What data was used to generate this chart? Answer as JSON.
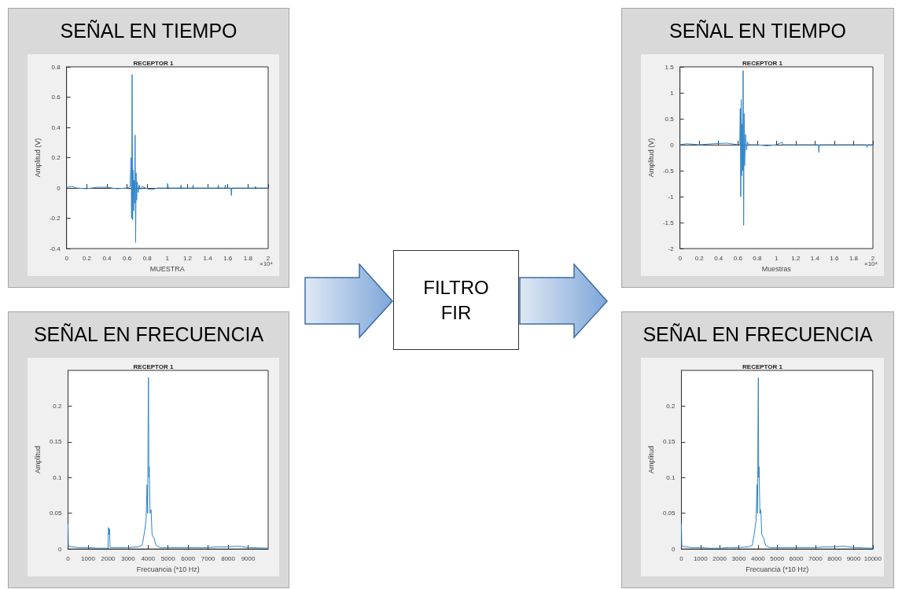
{
  "chart_data": [
    {
      "type": "line",
      "subtitle": "SEÑAL EN TIEMPO",
      "title": "RECEPTOR 1",
      "xlabel": "MUESTRA",
      "ylabel": "Amplitud (V)",
      "annotations": [
        "×10⁴"
      ],
      "marker": "none",
      "xlim": [
        0,
        2
      ],
      "xticks": [
        0,
        0.2,
        0.4,
        0.6,
        0.8,
        1,
        1.2,
        1.4,
        1.6,
        1.8,
        2
      ],
      "ylim": [
        -0.4,
        0.8
      ],
      "yticks": [
        -0.4,
        -0.2,
        0,
        0.2,
        0.4,
        0.6,
        0.8
      ],
      "series": [
        {
          "color": "#2f84c8",
          "x": [
            0,
            0.05,
            0.1,
            0.2,
            0.3,
            0.4,
            0.5,
            0.6,
            0.63,
            0.64,
            0.645,
            0.65,
            0.655,
            0.66,
            0.665,
            0.67,
            0.675,
            0.68,
            0.685,
            0.69,
            0.695,
            0.7,
            0.71,
            0.72,
            0.73,
            0.75,
            0.8,
            0.85,
            0.9,
            1.0,
            1.001,
            1.01,
            1.13,
            1.135,
            1.14,
            1.25,
            1.255,
            1.26,
            1.5,
            1.505,
            1.51,
            1.57,
            1.575,
            1.58,
            1.63,
            1.635,
            1.64,
            1.72,
            1.87,
            1.875,
            1.88,
            2
          ],
          "values": [
            0.005,
            0.01,
            0,
            -0.005,
            0.005,
            0.005,
            -0.005,
            0,
            0.01,
            0.2,
            -0.2,
            0.75,
            -0.21,
            0.12,
            -0.15,
            0.05,
            -0.1,
            0.35,
            -0.36,
            0.1,
            -0.08,
            0.04,
            -0.03,
            0.02,
            -0.01,
            0.01,
            -0.005,
            -0.01,
            0,
            0,
            0.03,
            0,
            0,
            0.02,
            0,
            0,
            0.02,
            0,
            0,
            0.02,
            0,
            0,
            0.02,
            0,
            0,
            -0.05,
            0,
            0,
            0,
            0.01,
            0,
            0
          ]
        }
      ]
    },
    {
      "type": "line",
      "subtitle": "SEÑAL EN FRECUENCIA",
      "title": "RECEPTOR 1",
      "xlabel": "Frecuancia (*10 Hz)",
      "ylabel": "Amplitud",
      "marker": "none",
      "xlim": [
        0,
        10000
      ],
      "xticks": [
        0,
        1000,
        2000,
        3000,
        4000,
        5000,
        6000,
        7000,
        8000,
        9000
      ],
      "ylim": [
        0,
        0.25
      ],
      "yticks": [
        0,
        0.05,
        0.1,
        0.15,
        0.2
      ],
      "series": [
        {
          "color": "#2f84c8",
          "x": [
            0,
            20,
            500,
            1000,
            1500,
            2000,
            2020,
            2060,
            2080,
            2100,
            2500,
            3000,
            3500,
            3700,
            3800,
            3900,
            3950,
            3980,
            4000,
            4020,
            4040,
            4060,
            4100,
            4150,
            4200,
            4300,
            4400,
            4600,
            5000,
            6000,
            7000,
            7500,
            8000,
            8500,
            9000,
            10000
          ],
          "values": [
            0.035,
            0.004,
            0.002,
            0.002,
            0.001,
            0.001,
            0.03,
            0.02,
            0.028,
            0.002,
            0.002,
            0.002,
            0.003,
            0.005,
            0.02,
            0.04,
            0.09,
            0.05,
            0.17,
            0.24,
            0.1,
            0.115,
            0.05,
            0.055,
            0.02,
            0.015,
            0.005,
            0.002,
            0.002,
            0.002,
            0.002,
            0.003,
            0.003,
            0.004,
            0.002,
            0.001
          ]
        }
      ]
    },
    {
      "type": "other",
      "title": "FILTRO FIR"
    },
    {
      "type": "line",
      "subtitle": "SEÑAL EN TIEMPO",
      "title": "RECEPTOR 1",
      "xlabel": "Muestras",
      "ylabel": "Amplitud (V)",
      "annotations": [
        "×10⁴"
      ],
      "marker": "none",
      "xlim": [
        0,
        2
      ],
      "xticks": [
        0,
        0.2,
        0.4,
        0.6,
        0.8,
        1,
        1.2,
        1.4,
        1.6,
        1.8,
        2
      ],
      "ylim": [
        -2,
        1.5
      ],
      "yticks": [
        -2,
        -1.5,
        -1,
        -0.5,
        0,
        0.5,
        1,
        1.5
      ],
      "series": [
        {
          "color": "#2f84c8",
          "x": [
            0,
            0.07,
            0.2,
            0.35,
            0.49,
            0.6,
            0.62,
            0.625,
            0.63,
            0.635,
            0.64,
            0.645,
            0.65,
            0.655,
            0.66,
            0.665,
            0.67,
            0.68,
            0.69,
            0.7,
            0.72,
            0.8,
            0.9,
            1.0,
            1.06,
            1.065,
            1.07,
            1.2,
            1.435,
            1.44,
            1.445,
            1.45,
            1.6,
            1.8,
            1.935,
            1.94,
            1.945,
            1.95,
            2
          ],
          "values": [
            0,
            0.02,
            0,
            0.02,
            0.03,
            0,
            0.02,
            0.7,
            -1.0,
            0.87,
            -0.6,
            0.4,
            -0.5,
            1.43,
            -1.55,
            0.6,
            -0.4,
            0.2,
            -0.1,
            0.05,
            0,
            0,
            -0.02,
            0,
            0.05,
            0,
            0,
            0,
            0,
            -0.15,
            0,
            0,
            0,
            0,
            0,
            -0.05,
            0,
            0,
            0
          ]
        }
      ]
    },
    {
      "type": "line",
      "subtitle": "SEÑAL EN FRECUENCIA",
      "title": "RECEPTOR 1",
      "xlabel": "Frecuancia (*10 Hz)",
      "ylabel": "Amplitud",
      "marker": "none",
      "xlim": [
        0,
        10000
      ],
      "xticks": [
        0,
        1000,
        2000,
        3000,
        4000,
        5000,
        6000,
        7000,
        8000,
        9000,
        10000
      ],
      "ylim": [
        0,
        0.25
      ],
      "yticks": [
        0,
        0.05,
        0.1,
        0.15,
        0.2
      ],
      "series": [
        {
          "color": "#2f84c8",
          "x": [
            0,
            20,
            500,
            1000,
            1500,
            2000,
            2500,
            3000,
            3500,
            3700,
            3800,
            3900,
            3950,
            3980,
            4000,
            4020,
            4040,
            4060,
            4100,
            4150,
            4200,
            4300,
            4400,
            4600,
            5000,
            6000,
            7000,
            7500,
            8000,
            8500,
            9000,
            10000
          ],
          "values": [
            0.035,
            0.004,
            0.002,
            0.002,
            0.001,
            0.001,
            0.002,
            0.002,
            0.003,
            0.005,
            0.02,
            0.04,
            0.09,
            0.05,
            0.17,
            0.24,
            0.1,
            0.115,
            0.05,
            0.055,
            0.02,
            0.015,
            0.005,
            0.002,
            0.002,
            0.002,
            0.002,
            0.003,
            0.003,
            0.004,
            0.002,
            0.001
          ]
        }
      ]
    }
  ]
}
